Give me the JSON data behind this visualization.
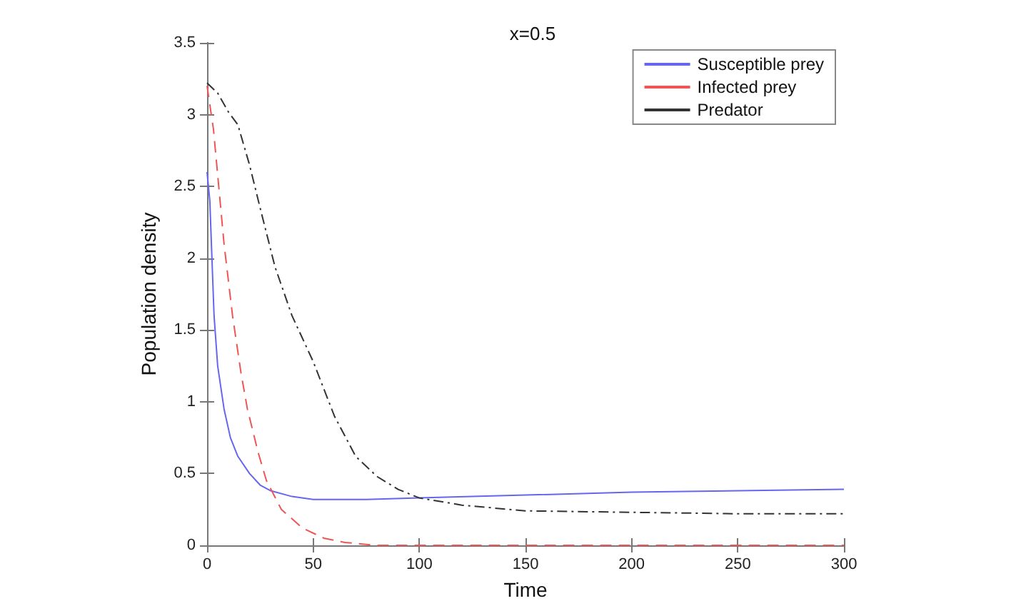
{
  "chart_data": {
    "type": "line",
    "title": "x=0.5",
    "xlabel": "Time",
    "ylabel": "Population density",
    "xlim": [
      0,
      300
    ],
    "xticks": [
      0,
      50,
      100,
      150,
      200,
      250,
      300
    ],
    "ylim": [
      0,
      3.5
    ],
    "yticks": [
      0,
      0.5,
      1,
      1.5,
      2,
      2.5,
      3,
      3.5
    ],
    "grid": false,
    "legend": "top right",
    "marker": "none",
    "series": [
      {
        "name": "Susceptible prey",
        "color": "#6666ee",
        "line_style": "solid",
        "x": [
          0,
          1.3,
          3.3,
          5,
          8,
          11,
          14.5,
          20,
          25,
          30,
          40,
          50,
          75,
          100,
          150,
          200,
          250,
          300
        ],
        "values": [
          2.6,
          2.4,
          1.6,
          1.25,
          0.95,
          0.75,
          0.62,
          0.5,
          0.42,
          0.38,
          0.34,
          0.32,
          0.32,
          0.33,
          0.35,
          0.37,
          0.38,
          0.39
        ]
      },
      {
        "name": "Infected prey",
        "color": "#ee5555",
        "line_style": "dashed",
        "x": [
          0,
          3,
          5.5,
          8,
          12,
          16,
          19,
          24,
          28,
          35,
          45,
          55,
          65,
          80,
          150,
          200,
          300
        ],
        "values": [
          3.2,
          2.9,
          2.5,
          2.1,
          1.6,
          1.2,
          0.95,
          0.65,
          0.45,
          0.25,
          0.12,
          0.05,
          0.02,
          0,
          0,
          0,
          0
        ]
      },
      {
        "name": "Predator",
        "color": "#333333",
        "line_style": "dashdot",
        "x": [
          0,
          5,
          10,
          14.5,
          20,
          25,
          32,
          40,
          50,
          60,
          70,
          80,
          90,
          100,
          120,
          150,
          200,
          250,
          300
        ],
        "values": [
          3.22,
          3.15,
          3.02,
          2.93,
          2.65,
          2.35,
          1.94,
          1.6,
          1.28,
          0.9,
          0.62,
          0.48,
          0.39,
          0.33,
          0.28,
          0.24,
          0.23,
          0.22,
          0.22
        ]
      }
    ]
  }
}
